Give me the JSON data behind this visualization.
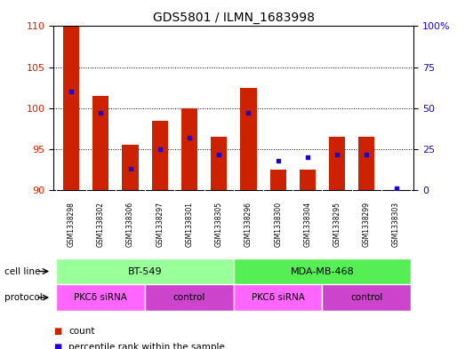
{
  "title": "GDS5801 / ILMN_1683998",
  "samples": [
    "GSM1338298",
    "GSM1338302",
    "GSM1338306",
    "GSM1338297",
    "GSM1338301",
    "GSM1338305",
    "GSM1338296",
    "GSM1338300",
    "GSM1338304",
    "GSM1338295",
    "GSM1338299",
    "GSM1338303"
  ],
  "counts": [
    110,
    101.5,
    95.5,
    98.5,
    100,
    96.5,
    102.5,
    92.5,
    92.5,
    96.5,
    96.5,
    90
  ],
  "percentile_ranks": [
    60,
    47,
    13,
    25,
    32,
    22,
    47,
    18,
    20,
    22,
    22,
    1
  ],
  "ylim_left": [
    90,
    110
  ],
  "ylim_right": [
    0,
    100
  ],
  "yticks_left": [
    90,
    95,
    100,
    105,
    110
  ],
  "yticks_right": [
    0,
    25,
    50,
    75,
    100
  ],
  "bar_color": "#cc2200",
  "dot_color": "#2200cc",
  "cell_lines": [
    {
      "label": "BT-549",
      "start": 0,
      "end": 6,
      "color": "#99ff99"
    },
    {
      "label": "MDA-MB-468",
      "start": 6,
      "end": 12,
      "color": "#55ee55"
    }
  ],
  "protocols": [
    {
      "label": "PKCδ siRNA",
      "start": 0,
      "end": 3,
      "color": "#ff66ff"
    },
    {
      "label": "control",
      "start": 3,
      "end": 6,
      "color": "#cc44cc"
    },
    {
      "label": "PKCδ siRNA",
      "start": 6,
      "end": 9,
      "color": "#ff66ff"
    },
    {
      "label": "control",
      "start": 9,
      "end": 12,
      "color": "#cc44cc"
    }
  ],
  "cell_line_label": "cell line",
  "protocol_label": "protocol",
  "legend_count": "count",
  "legend_percentile": "percentile rank within the sample",
  "xtick_bg": "#cccccc",
  "plot_bg": "#ffffff"
}
